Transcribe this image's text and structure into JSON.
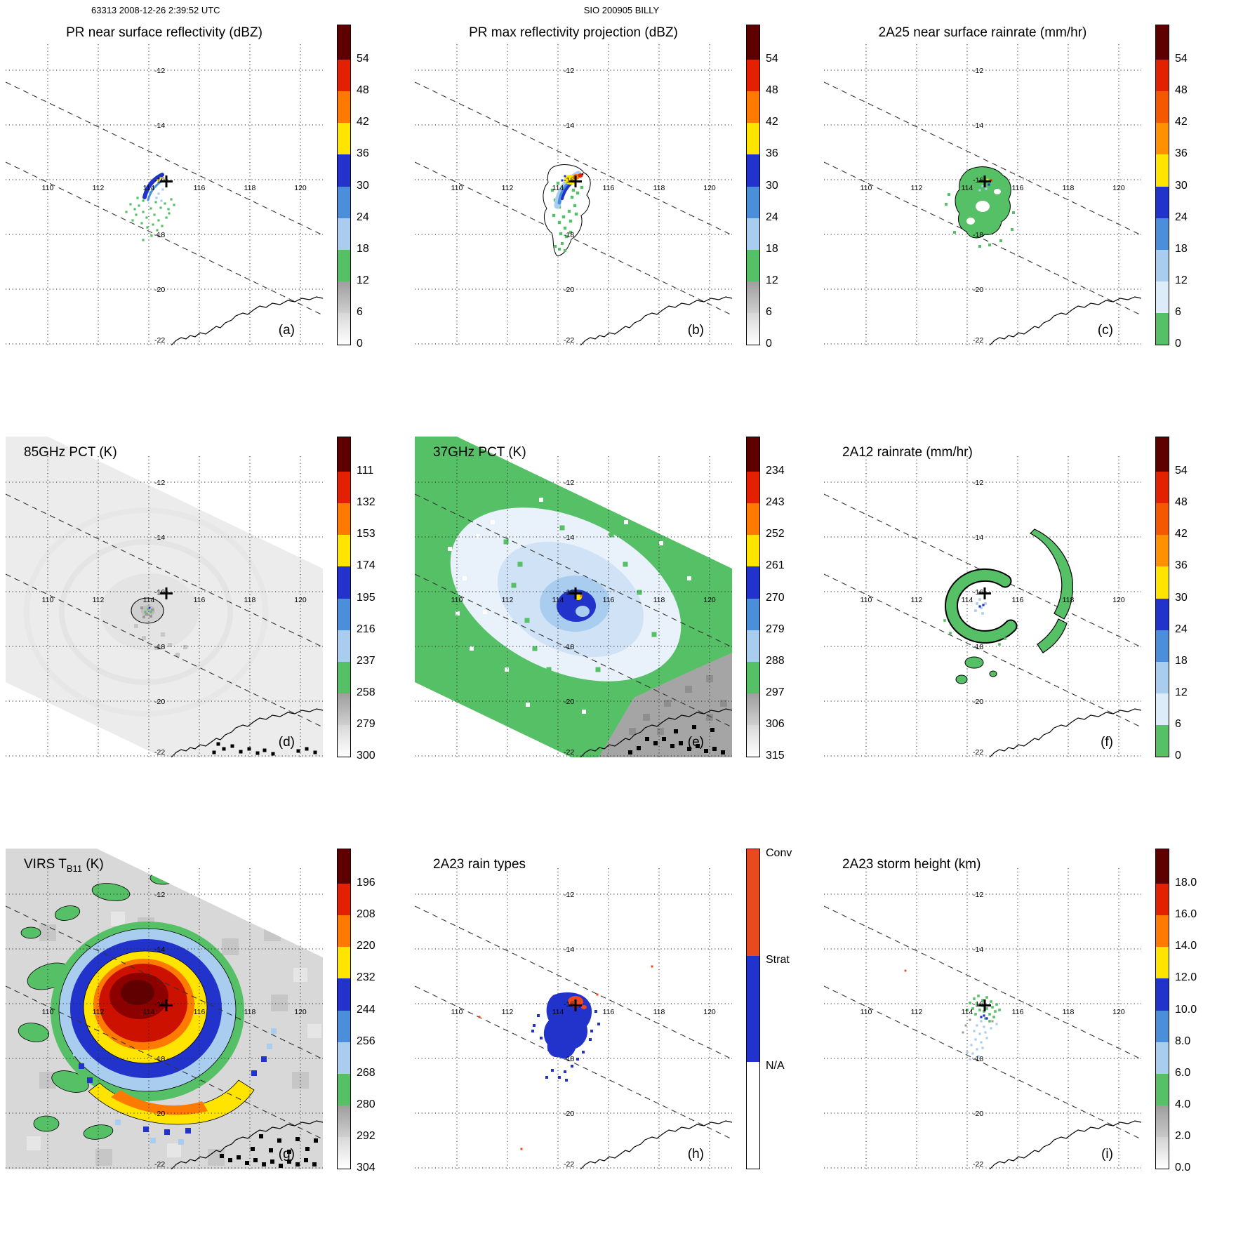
{
  "header": {
    "left": "63313 2008-12-26 2:39:52 UTC",
    "center": "SIO 200905 BILLY"
  },
  "chart_data": {
    "type": "heatmap",
    "layout": "3x3 grid of satellite overpass map panels of tropical cyclone Billy",
    "geo": {
      "lon_ticks": [
        110,
        112,
        114,
        116,
        118,
        120
      ],
      "lat_ticks": [
        -12,
        -14,
        -16,
        -18,
        -20,
        -22
      ],
      "storm_center": {
        "lon": 114.7,
        "lat": -16.1
      },
      "grid": "dotted",
      "swath_edges": "dashed diagonal lines NW-SE",
      "coastline": "NW Australia in lower right"
    },
    "palette": {
      "maroon": "#5e0000",
      "red": "#e32100",
      "orange": "#ff7a00",
      "yellow": "#ffe400",
      "blue": "#2233cc",
      "medblue": "#4b8fdb",
      "ltblue": "#a9cdef",
      "green": "#56c066",
      "gray": "#a0a0a0",
      "conv": "#e8491d",
      "strat": "#2233cc"
    },
    "panels": [
      {
        "id": "a",
        "letter": "(a)",
        "title": "PR near surface reflectivity (dBZ)",
        "units": "dBZ",
        "colorbar": {
          "ticks": [
            "54",
            "48",
            "42",
            "36",
            "30",
            "24",
            "18",
            "12",
            "6",
            "0"
          ],
          "colors": [
            "#5e0000",
            "#e32100",
            "#ff7a00",
            "#ffe400",
            "#2233cc",
            "#4b8fdb",
            "#a9cdef",
            "#56c066",
            "linear-gradient(#9e9e9e,#cfcfcf)",
            "linear-gradient(#d8d8d8,#ffffff)"
          ]
        }
      },
      {
        "id": "b",
        "letter": "(b)",
        "title": "PR max reflectivity projection (dBZ)",
        "units": "dBZ",
        "colorbar": {
          "ticks": [
            "54",
            "48",
            "42",
            "36",
            "30",
            "24",
            "18",
            "12",
            "6",
            "0"
          ],
          "colors": [
            "#5e0000",
            "#e32100",
            "#ff7a00",
            "#ffe400",
            "#2233cc",
            "#4b8fdb",
            "#a9cdef",
            "#56c066",
            "linear-gradient(#9e9e9e,#cfcfcf)",
            "linear-gradient(#d8d8d8,#ffffff)"
          ]
        }
      },
      {
        "id": "c",
        "letter": "(c)",
        "title": "2A25 near surface rainrate (mm/hr)",
        "units": "mm/hr",
        "colorbar": {
          "ticks": [
            "54",
            "48",
            "42",
            "36",
            "30",
            "24",
            "18",
            "12",
            "6",
            "0"
          ],
          "colors": [
            "#5e0000",
            "#e32100",
            "#f45800",
            "#ff9000",
            "#ffe400",
            "#2233cc",
            "#4b8fdb",
            "#a9cdef",
            "#dcecf9",
            "#56c066"
          ]
        }
      },
      {
        "id": "d",
        "letter": "(d)",
        "title": "85GHz PCT (K)",
        "units": "K",
        "colorbar": {
          "ticks": [
            "111",
            "132",
            "153",
            "174",
            "195",
            "216",
            "237",
            "258",
            "279",
            "300"
          ],
          "colors": [
            "#5e0000",
            "#e32100",
            "#ff7a00",
            "#ffe400",
            "#2233cc",
            "#4b8fdb",
            "#a9cdef",
            "#56c066",
            "linear-gradient(#9e9e9e,#cfcfcf)",
            "linear-gradient(#d8d8d8,#ffffff)"
          ]
        }
      },
      {
        "id": "e",
        "letter": "(e)",
        "title": "37GHz PCT (K)",
        "units": "K",
        "colorbar": {
          "ticks": [
            "234",
            "243",
            "252",
            "261",
            "270",
            "279",
            "288",
            "297",
            "306",
            "315"
          ],
          "colors": [
            "#5e0000",
            "#e32100",
            "#ff7a00",
            "#ffe400",
            "#2233cc",
            "#4b8fdb",
            "#a9cdef",
            "#56c066",
            "linear-gradient(#9e9e9e,#cfcfcf)",
            "linear-gradient(#d8d8d8,#ffffff)"
          ]
        }
      },
      {
        "id": "f",
        "letter": "(f)",
        "title": "2A12 rainrate (mm/hr)",
        "units": "mm/hr",
        "colorbar": {
          "ticks": [
            "54",
            "48",
            "42",
            "36",
            "30",
            "24",
            "18",
            "12",
            "6",
            "0"
          ],
          "colors": [
            "#5e0000",
            "#e32100",
            "#f45800",
            "#ff9000",
            "#ffe400",
            "#2233cc",
            "#4b8fdb",
            "#a9cdef",
            "#dcecf9",
            "#56c066"
          ]
        }
      },
      {
        "id": "g",
        "letter": "(g)",
        "title": "VIRS T",
        "title_sub": "B11",
        "title_end": " (K)",
        "units": "K",
        "colorbar": {
          "ticks": [
            "196",
            "208",
            "220",
            "232",
            "244",
            "256",
            "268",
            "280",
            "292",
            "304"
          ],
          "colors": [
            "#5e0000",
            "#e32100",
            "#ff7a00",
            "#ffe400",
            "#2233cc",
            "#4b8fdb",
            "#a9cdef",
            "#56c066",
            "linear-gradient(#9e9e9e,#cfcfcf)",
            "linear-gradient(#d8d8d8,#ffffff)"
          ]
        }
      },
      {
        "id": "h",
        "letter": "(h)",
        "title": "2A23 rain types",
        "units": "category",
        "colorbar": {
          "categories": [
            {
              "label": "Conv",
              "color": "#e8491d"
            },
            {
              "label": "Strat",
              "color": "#2233cc"
            },
            {
              "label": "N/A",
              "color": "#ffffff"
            }
          ]
        }
      },
      {
        "id": "i",
        "letter": "(i)",
        "title": "2A23 storm height (km)",
        "units": "km",
        "colorbar": {
          "ticks": [
            "18.0",
            "16.0",
            "14.0",
            "12.0",
            "10.0",
            "8.0",
            "6.0",
            "4.0",
            "2.0",
            "0.0"
          ],
          "colors": [
            "#5e0000",
            "#e32100",
            "#ff7a00",
            "#ffe400",
            "#2233cc",
            "#4b8fdb",
            "#a9cdef",
            "#56c066",
            "linear-gradient(#9e9e9e,#c8c8c8)",
            "linear-gradient(#d2d2d2,#ffffff)"
          ]
        }
      }
    ]
  }
}
